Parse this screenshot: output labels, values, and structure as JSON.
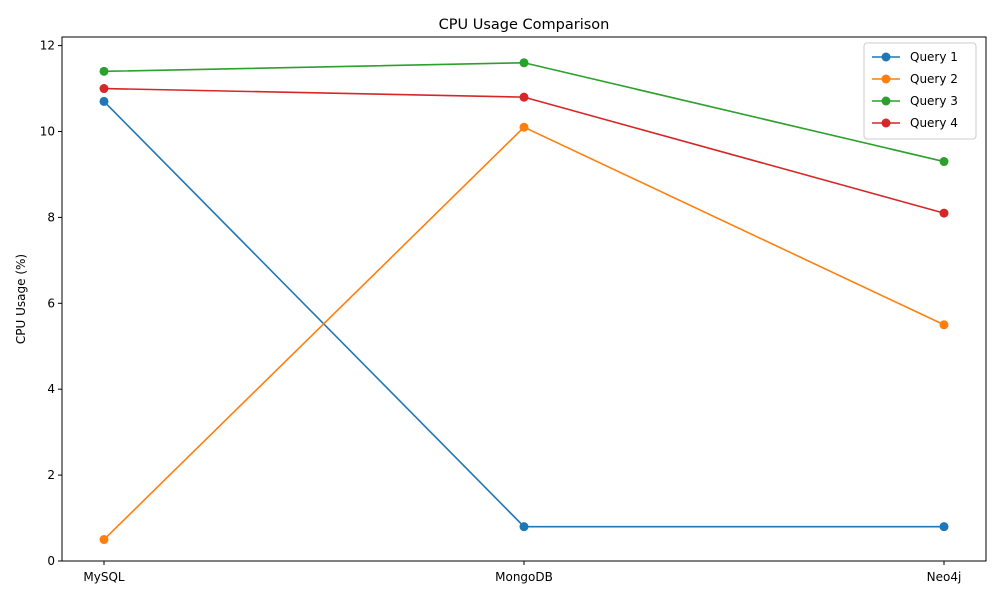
{
  "chart_data": {
    "type": "line",
    "title": "CPU Usage Comparison",
    "xlabel": "",
    "ylabel": "CPU Usage (%)",
    "categories": [
      "MySQL",
      "MongoDB",
      "Neo4j"
    ],
    "ylim": [
      0,
      12.2
    ],
    "yticks": [
      0,
      2,
      4,
      6,
      8,
      10,
      12
    ],
    "grid": false,
    "legend_position": "top-right",
    "series": [
      {
        "name": "Query 1",
        "color": "#1f77b4",
        "values": [
          10.7,
          0.8,
          0.8
        ]
      },
      {
        "name": "Query 2",
        "color": "#ff7f0e",
        "values": [
          0.5,
          10.1,
          5.5
        ]
      },
      {
        "name": "Query 3",
        "color": "#2ca02c",
        "values": [
          11.4,
          11.6,
          9.3
        ]
      },
      {
        "name": "Query 4",
        "color": "#d62728",
        "values": [
          11.0,
          10.8,
          8.1
        ]
      }
    ]
  }
}
